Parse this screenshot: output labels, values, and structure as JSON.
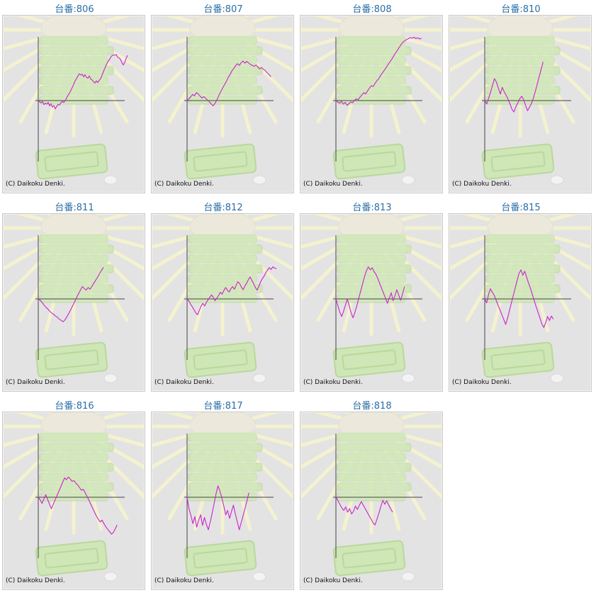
{
  "credit_text": "(C) Daikoku Denki.",
  "colors": {
    "title": "#2a6ea6",
    "line": "#cc22cc",
    "axis": "#444444",
    "panel": "#e3e3e3"
  },
  "chart_data": [
    {
      "type": "line",
      "title": "台番:806",
      "xlabel": "",
      "ylabel": "",
      "series": [
        {
          "values": [
            0,
            -0.3,
            -0.5,
            -0.2,
            -0.9,
            -0.6,
            -0.8,
            -0.4,
            -1.2,
            -0.7,
            -1.5,
            -1.1,
            -1.9,
            -1.3,
            -0.9,
            -1.0,
            -0.5,
            -0.2,
            -0.4,
            0,
            0.6,
            1.2,
            1.7,
            2.3,
            3.0,
            3.7,
            4.5,
            5.0,
            5.6,
            6.1,
            5.8,
            6.0,
            5.4,
            5.9,
            5.3,
            5.1,
            5.6,
            4.9,
            4.7,
            4.3,
            4.0,
            4.5,
            4.1,
            4.6,
            5.0,
            5.8,
            6.6,
            7.4,
            8.1,
            8.8,
            9.2,
            9.8,
            10.2,
            10.4,
            10.3,
            10.5,
            9.9,
            9.7,
            9.4,
            8.6,
            8.1,
            8.7,
            9.6,
            10.3
          ]
        }
      ]
    },
    {
      "type": "line",
      "title": "台番:807",
      "xlabel": "",
      "ylabel": "",
      "series": [
        {
          "values": [
            0,
            0.4,
            0.9,
            1.4,
            1.1,
            1.8,
            1.5,
            1.0,
            0.6,
            0.9,
            0.5,
            0.1,
            -0.3,
            -0.8,
            -1.2,
            -0.6,
            0.2,
            1.1,
            2.0,
            2.8,
            3.6,
            4.3,
            5.2,
            5.9,
            6.7,
            7.3,
            7.9,
            8.4,
            8.0,
            8.6,
            9.0,
            8.5,
            8.9,
            8.6,
            8.2,
            8.0,
            7.8,
            8.1,
            7.6,
            7.2,
            7.5,
            7.1,
            6.8,
            6.3,
            5.9,
            5.4
          ]
        }
      ]
    },
    {
      "type": "line",
      "title": "台番:808",
      "xlabel": "",
      "ylabel": "",
      "series": [
        {
          "values": [
            0,
            -0.3,
            -0.6,
            -0.2,
            -0.8,
            -0.4,
            -1.1,
            -0.7,
            -0.3,
            -0.5,
            0.1,
            0.4,
            0.2,
            0.8,
            1.3,
            1.8,
            1.5,
            2.2,
            2.8,
            3.4,
            3.2,
            3.9,
            4.5,
            5.0,
            5.7,
            6.3,
            6.9,
            7.5,
            8.2,
            8.8,
            9.4,
            10.1,
            10.8,
            11.4,
            12.1,
            12.7,
            13.3,
            13.6,
            13.9,
            14.1,
            14.3,
            14.2,
            14.4,
            14.1,
            14.3,
            14.0,
            14.2
          ]
        }
      ]
    },
    {
      "type": "line",
      "title": "台番:810",
      "xlabel": "",
      "ylabel": "",
      "series": [
        {
          "values": [
            0,
            -0.8,
            0.5,
            1.9,
            3.5,
            5.0,
            4.2,
            2.8,
            1.5,
            3.0,
            2.0,
            1.2,
            0.3,
            -0.8,
            -2.0,
            -2.6,
            -1.4,
            -0.5,
            0.4,
            1.0,
            0.2,
            -1.1,
            -2.3,
            -1.5,
            -0.7,
            0.6,
            2.1,
            3.8,
            5.5,
            7.2,
            8.8
          ]
        }
      ]
    },
    {
      "type": "line",
      "title": "台番:811",
      "xlabel": "",
      "ylabel": "",
      "series": [
        {
          "values": [
            0,
            -0.3,
            -0.8,
            -1.4,
            -1.9,
            -2.3,
            -2.8,
            -3.2,
            -3.5,
            -3.9,
            -4.2,
            -4.6,
            -4.9,
            -5.2,
            -4.7,
            -4.0,
            -3.2,
            -2.4,
            -1.5,
            -0.6,
            0.3,
            1.2,
            2.0,
            2.8,
            2.4,
            2.0,
            2.6,
            2.2,
            2.9,
            3.6,
            4.3,
            5.0,
            5.8,
            6.5,
            7.2
          ]
        }
      ]
    },
    {
      "type": "line",
      "title": "台番:812",
      "xlabel": "",
      "ylabel": "",
      "series": [
        {
          "values": [
            0,
            -0.5,
            -1.2,
            -1.8,
            -2.5,
            -3.2,
            -3.6,
            -2.6,
            -1.6,
            -1.0,
            -1.6,
            -0.8,
            -0.2,
            0.4,
            0.9,
            0.3,
            -0.4,
            0.2,
            0.8,
            1.5,
            1.1,
            1.9,
            2.6,
            2.0,
            1.6,
            2.3,
            2.8,
            2.2,
            3.1,
            3.9,
            3.5,
            2.7,
            2.1,
            2.9,
            3.6,
            4.4,
            5.0,
            4.2,
            3.5,
            2.6,
            2.0,
            2.9,
            3.9,
            4.6,
            5.2,
            6.0,
            6.6,
            7.1,
            6.7,
            7.3,
            7.0,
            6.9
          ]
        }
      ]
    },
    {
      "type": "line",
      "title": "台番:813",
      "xlabel": "",
      "ylabel": "",
      "series": [
        {
          "values": [
            0,
            -1.5,
            -3.0,
            -4.0,
            -2.8,
            -1.4,
            0,
            -1.6,
            -3.2,
            -4.3,
            -3.0,
            -1.5,
            0.2,
            1.8,
            3.4,
            5.0,
            6.4,
            7.3,
            6.6,
            7.1,
            6.2,
            5.6,
            4.6,
            3.5,
            2.4,
            1.3,
            0.2,
            -1.0,
            0.2,
            1.4,
            -0.4,
            0.8,
            2.1,
            0.8,
            -0.3,
            1.2,
            2.8
          ]
        }
      ]
    },
    {
      "type": "line",
      "title": "台番:815",
      "xlabel": "",
      "ylabel": "",
      "series": [
        {
          "values": [
            0,
            -0.9,
            1.0,
            2.3,
            1.5,
            0.8,
            -0.3,
            -1.4,
            -2.5,
            -3.6,
            -4.7,
            -5.8,
            -4.3,
            -2.6,
            -0.9,
            0.8,
            2.5,
            4.2,
            5.8,
            6.6,
            5.4,
            6.3,
            4.9,
            3.6,
            2.4,
            1.0,
            -0.4,
            -1.8,
            -3.1,
            -4.4,
            -5.7,
            -6.5,
            -5.4,
            -4.0,
            -4.9,
            -3.9,
            -4.6
          ]
        }
      ]
    },
    {
      "type": "line",
      "title": "台番:816",
      "xlabel": "",
      "ylabel": "",
      "series": [
        {
          "values": [
            0,
            -0.6,
            -1.4,
            -0.4,
            0.6,
            -0.5,
            -1.6,
            -2.6,
            -1.6,
            -0.6,
            0.4,
            1.4,
            2.4,
            3.4,
            4.4,
            4.0,
            4.6,
            4.2,
            3.6,
            3.8,
            3.2,
            2.8,
            2.2,
            1.6,
            1.8,
            1.0,
            0.2,
            -0.7,
            -1.6,
            -2.5,
            -3.4,
            -4.3,
            -5.0,
            -5.6,
            -5.2,
            -6.0,
            -6.7,
            -7.3,
            -7.8,
            -8.4,
            -8.0,
            -7.2,
            -6.3
          ]
        }
      ]
    },
    {
      "type": "line",
      "title": "台番:817",
      "xlabel": "",
      "ylabel": "",
      "series": [
        {
          "values": [
            0,
            -2.6,
            -4.2,
            -6.0,
            -4.4,
            -6.8,
            -5.2,
            -4.0,
            -6.4,
            -4.6,
            -6.2,
            -7.4,
            -5.6,
            -3.6,
            -1.4,
            0.8,
            2.6,
            1.4,
            -0.2,
            -2.0,
            -4.0,
            -3.0,
            -4.8,
            -3.2,
            -1.8,
            -3.8,
            -5.6,
            -7.4,
            -5.8,
            -4.2,
            -2.5,
            -0.8,
            1.0
          ]
        }
      ]
    },
    {
      "type": "line",
      "title": "台番:818",
      "xlabel": "",
      "ylabel": "",
      "series": [
        {
          "values": [
            0,
            -0.8,
            -1.6,
            -2.4,
            -3.0,
            -2.2,
            -3.4,
            -2.6,
            -3.8,
            -3.2,
            -2.0,
            -2.8,
            -1.8,
            -1.0,
            -1.8,
            -2.6,
            -3.4,
            -4.2,
            -5.0,
            -5.8,
            -6.3,
            -5.0,
            -3.6,
            -2.1,
            -0.7,
            -1.6,
            -0.8,
            -1.8,
            -2.6,
            -3.4
          ]
        }
      ]
    }
  ]
}
